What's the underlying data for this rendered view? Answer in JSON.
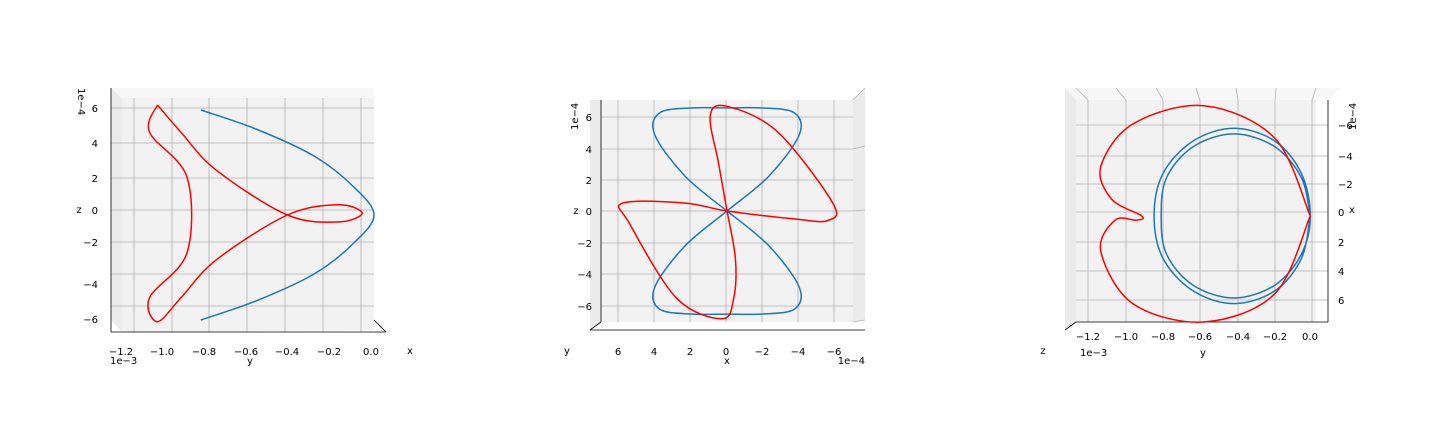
{
  "chart_data": [
    {
      "type": "line",
      "projection": "3d view looking along x",
      "xlabel": "y",
      "ylabel": "z",
      "depth_label": "x",
      "x_ticks": [
        "−1.2",
        "−1.0",
        "−0.8",
        "−0.6",
        "−0.4",
        "−0.2",
        "0.0"
      ],
      "x_ticks_values": [
        -0.0012,
        -0.001,
        -0.0008,
        -0.0006,
        -0.0004,
        -0.0002,
        0.0
      ],
      "x_offset": "1e−3",
      "y_ticks": [
        "−6",
        "−4",
        "−2",
        "0",
        "2",
        "4",
        "6"
      ],
      "y_ticks_values": [
        -0.0006,
        -0.0004,
        -0.0002,
        0.0,
        0.0002,
        0.0004,
        0.0006
      ],
      "y_offset": "1e−4",
      "xlim": [
        -0.00128,
        0.0
      ],
      "ylim": [
        -0.00068,
        0.00068
      ],
      "series": [
        {
          "color": "#1f77b4",
          "x": [
            -0.00088,
            -0.0006,
            -0.0003,
            -0.0001,
            0.0,
            -0.0001,
            -0.0003,
            -0.0006,
            -0.00088
          ],
          "y": [
            0.00061,
            0.0005,
            0.00034,
            0.00016,
            0.0,
            -0.00016,
            -0.00034,
            -0.0005,
            -0.00061
          ]
        },
        {
          "color": "#ff0000",
          "x": [
            -0.0011,
            -0.00098,
            -0.0008,
            -0.00044,
            -0.00018,
            -6e-05,
            -0.00018,
            -0.00044,
            -0.0008,
            -0.00098,
            -0.0011,
            -0.00114,
            -0.00095,
            -0.00095,
            -0.00114,
            -0.0011
          ],
          "y": [
            0.00064,
            0.00048,
            0.00026,
            0.0,
            -4e-05,
            1e-05,
            6e-05,
            0.0,
            -0.00026,
            -0.00048,
            -0.00062,
            -0.00048,
            -0.00022,
            0.00022,
            0.00048,
            0.00064
          ]
        }
      ]
    },
    {
      "type": "line",
      "projection": "3d view looking along y",
      "xlabel": "x",
      "ylabel": "z",
      "depth_label": "y",
      "x_ticks": [
        "6",
        "4",
        "2",
        "0",
        "−2",
        "−4",
        "−6"
      ],
      "x_ticks_values": [
        0.0006,
        0.0004,
        0.0002,
        0.0,
        -0.0002,
        -0.0004,
        -0.0006
      ],
      "x_offset": "1e−4",
      "y_ticks": [
        "−6",
        "−4",
        "−2",
        "0",
        "2",
        "4",
        "6"
      ],
      "y_ticks_values": [
        -0.0006,
        -0.0004,
        -0.0002,
        0.0,
        0.0002,
        0.0004,
        0.0006
      ],
      "y_offset": "1e−4",
      "xlim": [
        0.00075,
        -0.00075
      ],
      "ylim": [
        -0.0007,
        0.0007
      ],
      "series": [
        {
          "color": "#1f77b4",
          "x": [
            0.0,
            0.00025,
            0.00043,
            0.0004,
            0.0002,
            0.0,
            -0.0002,
            -0.0004,
            -0.00043,
            -0.00025,
            0.0,
            0.00025,
            0.00043,
            0.0004,
            0.0002,
            0.0,
            -0.0002,
            -0.0004,
            -0.00043,
            -0.00025,
            0.0
          ],
          "y": [
            0.0,
            0.00022,
            0.00048,
            0.00062,
            0.00065,
            0.00065,
            0.00065,
            0.00062,
            0.00048,
            0.00022,
            0.0,
            -0.00022,
            -0.00048,
            -0.00062,
            -0.00065,
            -0.00065,
            -0.00065,
            -0.00062,
            -0.00048,
            -0.00022,
            0.0
          ]
        },
        {
          "color": "#ff0000",
          "x": [
            0.0,
            5e-05,
            0.0001,
            0.0,
            -0.0003,
            -0.00063,
            -0.0006,
            -0.0004,
            0.0,
            0.00025,
            0.00062,
            0.00058,
            0.0003,
            3e-05,
            -4e-05,
            -5e-05,
            0.0
          ],
          "y": [
            0.0,
            0.0003,
            0.0006,
            0.00066,
            0.0005,
            5e-05,
            -6e-05,
            -5e-05,
            0.0,
            5e-05,
            5e-05,
            -8e-05,
            -0.00055,
            -0.00068,
            -0.00055,
            -0.0003,
            0.0
          ]
        }
      ]
    },
    {
      "type": "line",
      "projection": "3d view looking along z",
      "xlabel": "y",
      "ylabel": "x",
      "depth_label": "z",
      "x_ticks": [
        "−1.2",
        "−1.0",
        "−0.8",
        "−0.6",
        "−0.4",
        "−0.2",
        "0.0"
      ],
      "x_ticks_values": [
        -0.0012,
        -0.001,
        -0.0008,
        -0.0006,
        -0.0004,
        -0.0002,
        0.0
      ],
      "x_offset": "1e−3",
      "y_ticks": [
        "−6",
        "−4",
        "−2",
        "0",
        "2",
        "4",
        "6"
      ],
      "y_ticks_values": [
        -0.0006,
        -0.0004,
        -0.0002,
        0.0,
        0.0002,
        0.0004,
        0.0006
      ],
      "y_offset": "1e−4",
      "xlim": [
        -0.00132,
        0.0001
      ],
      "ylim": [
        0.00075,
        -0.00082
      ],
      "series": [
        {
          "color": "#1f77b4",
          "x": [
            0.0,
            -5e-05,
            -0.0002,
            -0.00043,
            -0.00066,
            -0.00083,
            -0.00088,
            -0.00083,
            -0.00066,
            -0.00043,
            -0.0002,
            -5e-05,
            0.0,
            -5e-05,
            -0.0002,
            -0.00043,
            -0.00066,
            -0.00081,
            -0.00084,
            -0.00081,
            -0.00066,
            -0.00043,
            -0.0002,
            -5e-05,
            0.0
          ],
          "y": [
            0.0,
            0.0003,
            0.00053,
            0.00062,
            0.00053,
            0.0003,
            0.0,
            -0.0003,
            -0.00053,
            -0.00062,
            -0.00053,
            -0.0003,
            0.0,
            0.00027,
            0.00049,
            0.00058,
            0.00049,
            0.00027,
            0.0,
            -0.00027,
            -0.00049,
            -0.00058,
            -0.00049,
            -0.00027,
            0.0
          ]
        },
        {
          "color": "#ff0000",
          "x": [
            0.0,
            -0.0002,
            -0.0006,
            -0.001,
            -0.00118,
            -0.00112,
            -0.00095,
            -0.00098,
            -0.0011,
            -0.00118,
            -0.001,
            -0.0006,
            -0.0002,
            0.0
          ],
          "y": [
            0.0,
            -0.00055,
            -0.00078,
            -0.00065,
            -0.00035,
            -0.00012,
            0.0,
            3e-05,
            3e-05,
            0.00025,
            0.00062,
            0.00075,
            0.00055,
            0.0
          ]
        }
      ]
    }
  ]
}
